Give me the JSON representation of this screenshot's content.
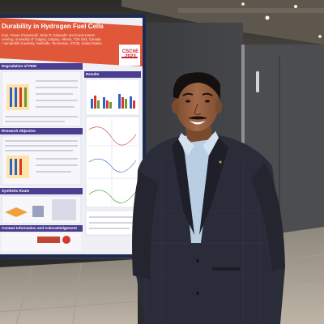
{
  "poster": {
    "title": "Durability in Hydrogen Fuel Cells",
    "authors_line1": "ring¹, Pavan Chaturvedi¹, Brian R. Edwards¹ and Kunal Karan¹",
    "authors_line2": "neering, University of Calgary, Calgary, Alberta, T2N 1N4, Canada",
    "authors_line3": "² Vanderbilt University, Nashville, Tennessee, 37235, United States",
    "logo_text": "CSChE 2023",
    "sections": {
      "left_top": "Degradation of PEM",
      "results": "Results",
      "research_objective": "Research Objective",
      "synthetic_route": "Synthetic Route",
      "contact": "Contact Information and Acknowledgement"
    }
  },
  "colors": {
    "poster_header": "#e0573a",
    "poster_section": "#4b3d8f",
    "jacket": "#2b2c3a",
    "shirt": "#b9cde3",
    "booth_wall": "#3a3b3d"
  }
}
